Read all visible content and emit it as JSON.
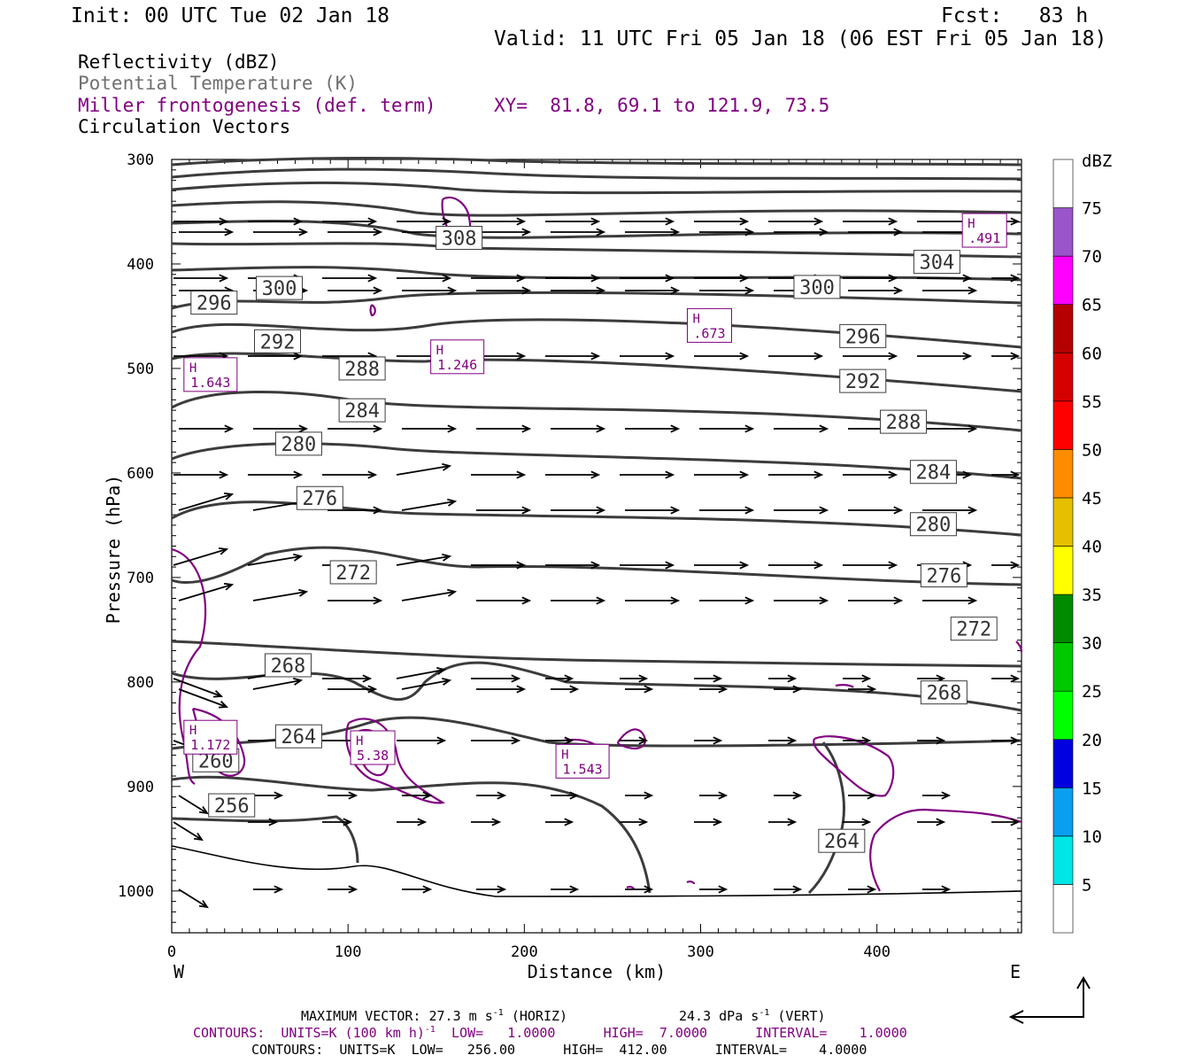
{
  "header": {
    "init": "Init: 00 UTC Tue 02 Jan 18",
    "fcst": "Fcst:   83 h",
    "valid": "Valid: 11 UTC Fri 05 Jan 18 (06 EST Fri 05 Jan 18)",
    "field1": "Reflectivity (dBZ)",
    "field2": "Potential Temperature (K)",
    "field3": "Miller frontogenesis (def. term)",
    "field4": "Circulation Vectors",
    "xy": "XY=  81.8, 69.1 to 121.9, 73.5"
  },
  "colors": {
    "frontogenesis": "#800080",
    "theta": "#3c3c3c",
    "vectors": "#000000",
    "field2_text": "#707070"
  },
  "colorbar": {
    "unit": "dBZ",
    "levels": [
      "5",
      "10",
      "15",
      "20",
      "25",
      "30",
      "35",
      "40",
      "45",
      "50",
      "55",
      "60",
      "65",
      "70",
      "75"
    ],
    "colors": [
      "#ffffff",
      "#00e5e5",
      "#0a9ef0",
      "#0000e0",
      "#00ff00",
      "#00c800",
      "#008a00",
      "#ffff00",
      "#e6c000",
      "#ff8c00",
      "#ff0000",
      "#d50000",
      "#b40000",
      "#ff00ff",
      "#9955c9",
      "#ffffff"
    ]
  },
  "footer": {
    "max_vector": "MAXIMUM VECTOR:  27.3 m s",
    "max_vector_exp": "-1",
    "max_vector_horiz": " (HORIZ)",
    "max_vector_vert": "24.3 dPa s",
    "max_vector_vert_exp": "-1",
    "max_vector_vert_suffix": " (VERT)",
    "contours_purple": "CONTOURS:  UNITS=K (100 km h)",
    "contours_purple_exp": "-1",
    "contours_purple_rest": "  LOW=   1.0000      HIGH=  7.0000      INTERVAL=    1.0000",
    "contours_black": "CONTOURS:  UNITS=K  LOW=   256.00      HIGH=  412.00      INTERVAL=    4.0000"
  },
  "chart_data": {
    "type": "line",
    "title": "",
    "xlabel": "Distance (km)",
    "ylabel": "Pressure (hPa)",
    "xlim": [
      0,
      482
    ],
    "ylim": [
      1040,
      300
    ],
    "x_ticks": [
      "0",
      "100",
      "200",
      "300",
      "400"
    ],
    "y_ticks": [
      "300",
      "400",
      "500",
      "600",
      "700",
      "800",
      "900",
      "1000"
    ],
    "x_end_labels": {
      "left": "W",
      "right": "E"
    },
    "grid": false,
    "theta_labels": [
      {
        "value": "308",
        "x": 163,
        "p": 375
      },
      {
        "value": "304",
        "x": 434,
        "p": 398
      },
      {
        "value": "300",
        "x": 61,
        "p": 423
      },
      {
        "value": "300",
        "x": 366,
        "p": 422
      },
      {
        "value": "296",
        "x": 24,
        "p": 437
      },
      {
        "value": "296",
        "x": 392,
        "p": 469
      },
      {
        "value": "292",
        "x": 60,
        "p": 474
      },
      {
        "value": "292",
        "x": 392,
        "p": 512
      },
      {
        "value": "288",
        "x": 108,
        "p": 500
      },
      {
        "value": "288",
        "x": 415,
        "p": 551
      },
      {
        "value": "284",
        "x": 108,
        "p": 540
      },
      {
        "value": "284",
        "x": 432,
        "p": 599
      },
      {
        "value": "280",
        "x": 72,
        "p": 572
      },
      {
        "value": "280",
        "x": 432,
        "p": 649
      },
      {
        "value": "276",
        "x": 84,
        "p": 624
      },
      {
        "value": "276",
        "x": 438,
        "p": 698
      },
      {
        "value": "272",
        "x": 103,
        "p": 695
      },
      {
        "value": "272",
        "x": 455,
        "p": 749
      },
      {
        "value": "268",
        "x": 66,
        "p": 784
      },
      {
        "value": "268",
        "x": 438,
        "p": 810
      },
      {
        "value": "264",
        "x": 72,
        "p": 852
      },
      {
        "value": "264",
        "x": 380,
        "p": 952
      },
      {
        "value": "260",
        "x": 25,
        "p": 875
      },
      {
        "value": "256",
        "x": 34,
        "p": 918
      }
    ],
    "frontogenesis_maxima": [
      {
        "label": "H",
        "value": ".491",
        "x": 461,
        "p": 367
      },
      {
        "label": "H",
        "value": ".673",
        "x": 305,
        "p": 458
      },
      {
        "label": "H",
        "value": "1.246",
        "x": 162,
        "p": 488
      },
      {
        "label": "H",
        "value": "1.643",
        "x": 22,
        "p": 505
      },
      {
        "label": "H",
        "value": "1.172",
        "x": 22,
        "p": 852
      },
      {
        "label": "H",
        "value": "5.38",
        "x": 114,
        "p": 862
      },
      {
        "label": "H",
        "value": "1.543",
        "x": 233,
        "p": 875
      }
    ]
  }
}
